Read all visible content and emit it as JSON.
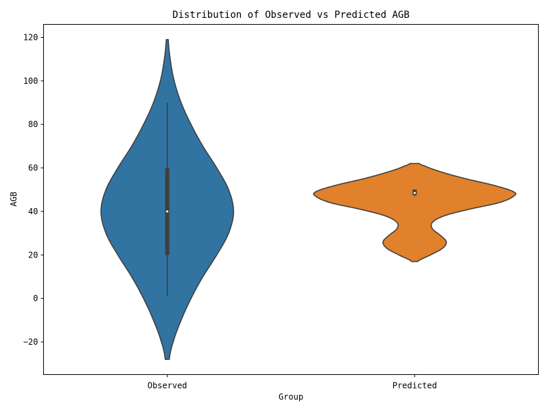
{
  "chart_data": {
    "type": "violin",
    "title": "Distribution of Observed vs Predicted AGB",
    "xlabel": "Group",
    "ylabel": "AGB",
    "categories": [
      "Observed",
      "Predicted"
    ],
    "ylim": [
      -35,
      126
    ],
    "yticks": [
      -20,
      0,
      20,
      40,
      60,
      80,
      100,
      120
    ],
    "grid": false,
    "series": [
      {
        "name": "Observed",
        "color": "#3274a1",
        "min": 1,
        "q1": 20,
        "median": 40,
        "q3": 60,
        "max": 90,
        "kde_range": [
          -28,
          119
        ],
        "density": [
          [
            -28,
            0.02
          ],
          [
            -20,
            0.06
          ],
          [
            -10,
            0.14
          ],
          [
            0,
            0.24
          ],
          [
            10,
            0.36
          ],
          [
            20,
            0.5
          ],
          [
            30,
            0.62
          ],
          [
            40,
            0.67
          ],
          [
            50,
            0.62
          ],
          [
            60,
            0.5
          ],
          [
            70,
            0.36
          ],
          [
            80,
            0.24
          ],
          [
            90,
            0.14
          ],
          [
            100,
            0.07
          ],
          [
            110,
            0.03
          ],
          [
            119,
            0.01
          ]
        ]
      },
      {
        "name": "Predicted",
        "color": "#e1812c",
        "min": 47,
        "q1": 47.5,
        "median": 48.5,
        "q3": 50,
        "max": 50,
        "kde_range": [
          17,
          62
        ],
        "density": [
          [
            17,
            0.03
          ],
          [
            20,
            0.16
          ],
          [
            23,
            0.28
          ],
          [
            26,
            0.32
          ],
          [
            29,
            0.26
          ],
          [
            32,
            0.18
          ],
          [
            35,
            0.18
          ],
          [
            38,
            0.3
          ],
          [
            41,
            0.55
          ],
          [
            44,
            0.85
          ],
          [
            47,
            1.0
          ],
          [
            49,
            1.0
          ],
          [
            52,
            0.8
          ],
          [
            55,
            0.52
          ],
          [
            58,
            0.28
          ],
          [
            61,
            0.1
          ],
          [
            62,
            0.05
          ]
        ]
      }
    ]
  }
}
